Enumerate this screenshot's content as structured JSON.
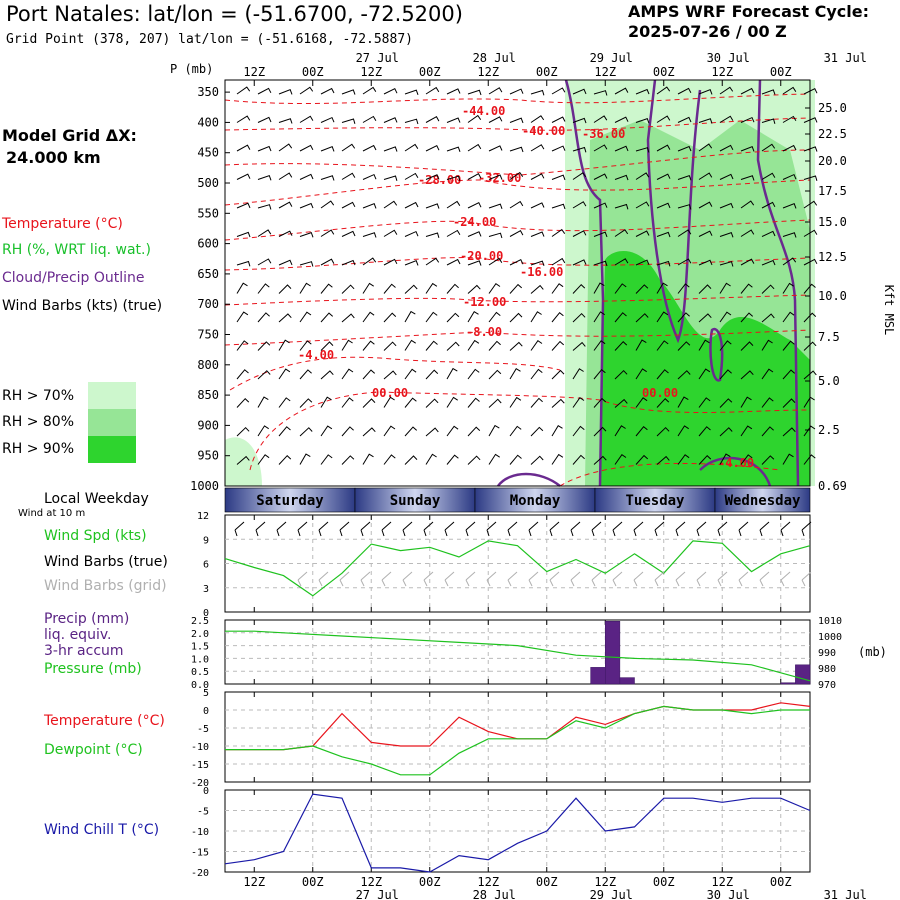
{
  "header": {
    "title": "Port Natales:  lat/lon = (-51.6700, -72.5200)",
    "grid_point": "Grid Point (378, 207) lat/lon = (-51.6168, -72.5887)",
    "cycle_label": "AMPS WRF Forecast Cycle:",
    "cycle_value": "2025-07-26 / 00  Z"
  },
  "left_panel": {
    "model_grid_label": "Model Grid ΔX:",
    "model_grid_value": "24.000 km",
    "legend": [
      {
        "text": "Temperature (°C)",
        "color": "#e8141c"
      },
      {
        "text": "RH (%, WRT liq. wat.)",
        "color": "#19c02b"
      },
      {
        "text": "Cloud/Precip Outline",
        "color": "#6a2a8f"
      },
      {
        "text": "Wind Barbs (kts) (true)",
        "color": "#000000"
      }
    ],
    "rh_legend": [
      {
        "text": "RH > 70%",
        "color": "#cdf7cd"
      },
      {
        "text": "RH > 80%",
        "color": "#96e596"
      },
      {
        "text": "RH > 90%",
        "color": "#2ed42e"
      }
    ]
  },
  "colors": {
    "temperature": "#e8141c",
    "dewpoint": "#1fc21f",
    "wind_speed": "#1fc21f",
    "pressure": "#1fc21f",
    "precip": "#5a2384",
    "cloud_outline": "#6a2a8f",
    "wind_chill": "#1a1aa8",
    "grid_barbs": "#b0b0b0"
  },
  "chart_data": [
    {
      "type": "area",
      "name": "cross-section",
      "y_axis_label_left": "P (mb)",
      "y_ticks_left": [
        "350",
        "400",
        "450",
        "500",
        "550",
        "600",
        "650",
        "700",
        "750",
        "800",
        "850",
        "900",
        "950",
        "1000"
      ],
      "y_axis_label_right": "Kft MSL",
      "y_ticks_right": [
        "25.0",
        "22.5",
        "20.0",
        "17.5",
        "15.0",
        "12.5",
        "10.0",
        "7.5",
        "5.0",
        "2.5",
        "0.69"
      ],
      "x_top_hours": [
        "12Z",
        "00Z",
        "12Z",
        "00Z",
        "12Z",
        "00Z",
        "12Z",
        "00Z",
        "12Z",
        "00Z"
      ],
      "x_top_dates": [
        "27 Jul",
        "28 Jul",
        "29 Jul",
        "30 Jul",
        "31 Jul"
      ],
      "temperature_labels": [
        "-44.00",
        "-40.00",
        "-36.00",
        "-28.00",
        "-32.00",
        "-24.00",
        "-20.00",
        "-16.00",
        "-12.00",
        "-8.00",
        "-4.00",
        "00.00",
        "00.00",
        "-4.00"
      ]
    },
    {
      "type": "table",
      "name": "weekday-strip",
      "label": "Local Weekday",
      "days": [
        "Saturday",
        "Sunday",
        "Monday",
        "Tuesday",
        "Wednesday"
      ]
    },
    {
      "type": "line",
      "name": "wind",
      "caption": "Wind at 10 m",
      "legend": [
        "Wind Spd (kts)",
        "Wind Barbs (true)",
        "Wind Barbs (grid)"
      ],
      "ylim": [
        0,
        12
      ],
      "y_ticks": [
        "12",
        "9",
        "6",
        "3",
        "0"
      ],
      "x_hours": [
        0,
        6,
        12,
        18,
        24,
        30,
        36,
        42,
        48,
        54,
        60,
        66,
        72,
        78,
        84,
        90,
        96,
        102,
        108,
        114,
        120
      ],
      "series": [
        {
          "name": "Wind Spd (kts)",
          "values": [
            6.6,
            5.5,
            4.5,
            2.0,
            4.8,
            8.4,
            7.6,
            8.0,
            6.8,
            8.8,
            8.2,
            5.0,
            6.5,
            4.8,
            7.2,
            4.8,
            8.8,
            8.5,
            5.0,
            7.2,
            8.2
          ]
        }
      ]
    },
    {
      "type": "bar",
      "name": "precip-pressure",
      "legend": [
        "Precip (mm)",
        "liq. equiv.",
        "3-hr accum",
        "Pressure (mb)"
      ],
      "precip_ylim": [
        0,
        2.5
      ],
      "precip_y_ticks": [
        "2.5",
        "2.0",
        "1.5",
        "1.0",
        "0.5",
        "0.0"
      ],
      "pressure_ylim": [
        970,
        1010
      ],
      "pressure_y_ticks": [
        "1010",
        "1000",
        "990",
        "980",
        "970"
      ],
      "pressure_unit": "(mb)",
      "precip_bars": [
        {
          "hour": 78,
          "value": 0.65
        },
        {
          "hour": 81,
          "value": 2.45
        },
        {
          "hour": 84,
          "value": 0.25
        },
        {
          "hour": 117,
          "value": 0.05
        },
        {
          "hour": 120,
          "value": 0.75
        }
      ],
      "pressure": {
        "x": [
          0,
          6,
          12,
          24,
          36,
          48,
          60,
          72,
          84,
          96,
          108,
          114,
          120
        ],
        "values": [
          1003,
          1003,
          1002,
          1000,
          998,
          996,
          994,
          988,
          986,
          985,
          982,
          977,
          972
        ]
      }
    },
    {
      "type": "line",
      "name": "temperature-dewpoint",
      "legend": [
        "Temperature (°C)",
        "Dewpoint (°C)"
      ],
      "ylim": [
        -20,
        5
      ],
      "y_ticks": [
        "5",
        "0",
        "-5",
        "-10",
        "-15",
        "-20"
      ],
      "x_hours": [
        0,
        6,
        12,
        18,
        24,
        30,
        36,
        42,
        48,
        54,
        60,
        66,
        72,
        78,
        84,
        90,
        96,
        102,
        108,
        114,
        120
      ],
      "series": [
        {
          "name": "Temperature (°C)",
          "values": [
            -11,
            -11,
            -11,
            -10,
            -1,
            -9,
            -10,
            -10,
            -2,
            -6,
            -8,
            -8,
            -2,
            -4,
            -1,
            1,
            0,
            0,
            0,
            2,
            1
          ]
        },
        {
          "name": "Dewpoint (°C)",
          "values": [
            -11,
            -11,
            -11,
            -10,
            -13,
            -15,
            -18,
            -18,
            -12,
            -8,
            -8,
            -8,
            -3,
            -5,
            -1,
            1,
            0,
            0,
            -1,
            0,
            0
          ]
        }
      ]
    },
    {
      "type": "line",
      "name": "wind-chill",
      "legend": [
        "Wind Chill T (°C)"
      ],
      "ylim": [
        -20,
        0
      ],
      "y_ticks": [
        "0",
        "-5",
        "-10",
        "-15",
        "-20"
      ],
      "x_hours": [
        0,
        6,
        12,
        18,
        24,
        30,
        36,
        42,
        48,
        54,
        60,
        66,
        72,
        78,
        84,
        90,
        96,
        102,
        108,
        114,
        120
      ],
      "series": [
        {
          "name": "Wind Chill T (°C)",
          "values": [
            -18,
            -17,
            -15,
            -1,
            -2,
            -19,
            -19,
            -20,
            -16,
            -17,
            -13,
            -10,
            -2,
            -10,
            -9,
            -2,
            -2,
            -3,
            -2,
            -2,
            -5
          ]
        }
      ],
      "x_bottom_hours": [
        "12Z",
        "00Z",
        "12Z",
        "00Z",
        "12Z",
        "00Z",
        "12Z",
        "00Z",
        "12Z",
        "00Z"
      ],
      "x_bottom_dates": [
        "27 Jul",
        "28 Jul",
        "29 Jul",
        "30 Jul",
        "31 Jul"
      ]
    }
  ]
}
